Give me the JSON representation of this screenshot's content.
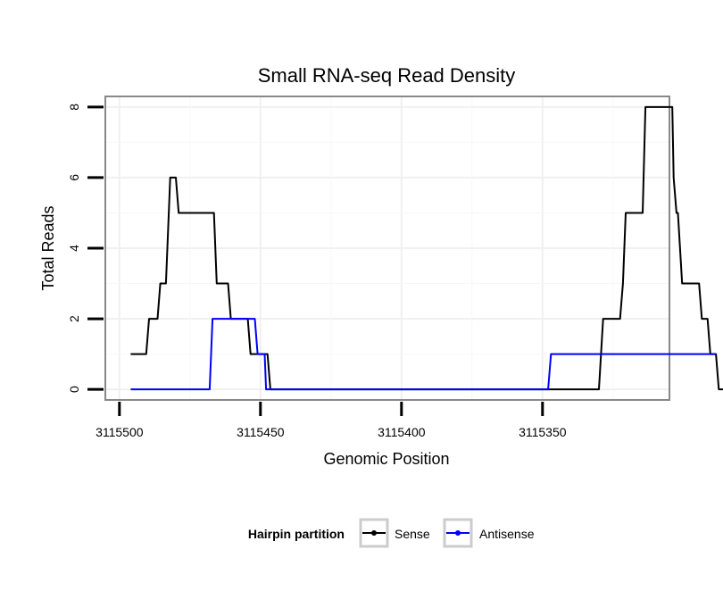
{
  "chart_data": {
    "type": "line",
    "title": "Small RNA-seq Read Density",
    "xlabel": "Genomic Position",
    "ylabel": "Total Reads",
    "xlim": [
      3115505,
      3115305
    ],
    "ylim": [
      -0.3,
      8.3
    ],
    "x_reversed": true,
    "x_ticks": [
      3115500,
      3115450,
      3115400,
      3115350
    ],
    "x_tick_labels": [
      "3115500",
      "3115450",
      "3115400",
      "3115350"
    ],
    "y_ticks": [
      0,
      2,
      4,
      6,
      8
    ],
    "y_tick_labels": [
      "0",
      "2",
      "4",
      "6",
      "8"
    ],
    "grid": true,
    "legend": {
      "title": "Hairpin partition",
      "position": "bottom",
      "entries": [
        "Sense",
        "Antisense"
      ]
    },
    "series": [
      {
        "name": "Sense",
        "color": "#000000",
        "points": [
          [
            3115496,
            1
          ],
          [
            3115490.5,
            1
          ],
          [
            3115489.5,
            2
          ],
          [
            3115486.5,
            2
          ],
          [
            3115485.5,
            3
          ],
          [
            3115483.5,
            3
          ],
          [
            3115482.5,
            5
          ],
          [
            3115482,
            6
          ],
          [
            3115480,
            6
          ],
          [
            3115479,
            5
          ],
          [
            3115466.5,
            5
          ],
          [
            3115465.5,
            3
          ],
          [
            3115461.5,
            3
          ],
          [
            3115460.5,
            2
          ],
          [
            3115454.5,
            2
          ],
          [
            3115453.5,
            1
          ],
          [
            3115447.5,
            1
          ],
          [
            3115446.5,
            0
          ],
          [
            3115330,
            0
          ],
          [
            3115328.5,
            2
          ],
          [
            3115322.5,
            2
          ],
          [
            3115321.5,
            3
          ],
          [
            3115320.5,
            5
          ],
          [
            3115314.5,
            5
          ],
          [
            3115313.5,
            8
          ],
          [
            3115304,
            8
          ],
          [
            3115303.5,
            6
          ],
          [
            3115302.5,
            5
          ],
          [
            3115302,
            5
          ],
          [
            3115300.5,
            3
          ],
          [
            3115294.5,
            3
          ],
          [
            3115293.5,
            2
          ],
          [
            3115291.5,
            2
          ],
          [
            3115290.5,
            1
          ],
          [
            3115288.5,
            1
          ],
          [
            3115287.5,
            0
          ],
          [
            3115286,
            0
          ]
        ]
      },
      {
        "name": "Antisense",
        "color": "#0000ff",
        "points": [
          [
            3115496,
            0
          ],
          [
            3115468,
            0
          ],
          [
            3115467,
            2
          ],
          [
            3115452,
            2
          ],
          [
            3115451,
            1
          ],
          [
            3115448.5,
            1
          ],
          [
            3115448,
            0
          ],
          [
            3115348,
            0
          ],
          [
            3115347,
            1
          ],
          [
            3115290,
            1
          ],
          [
            3115288.5,
            1
          ]
        ]
      }
    ]
  }
}
